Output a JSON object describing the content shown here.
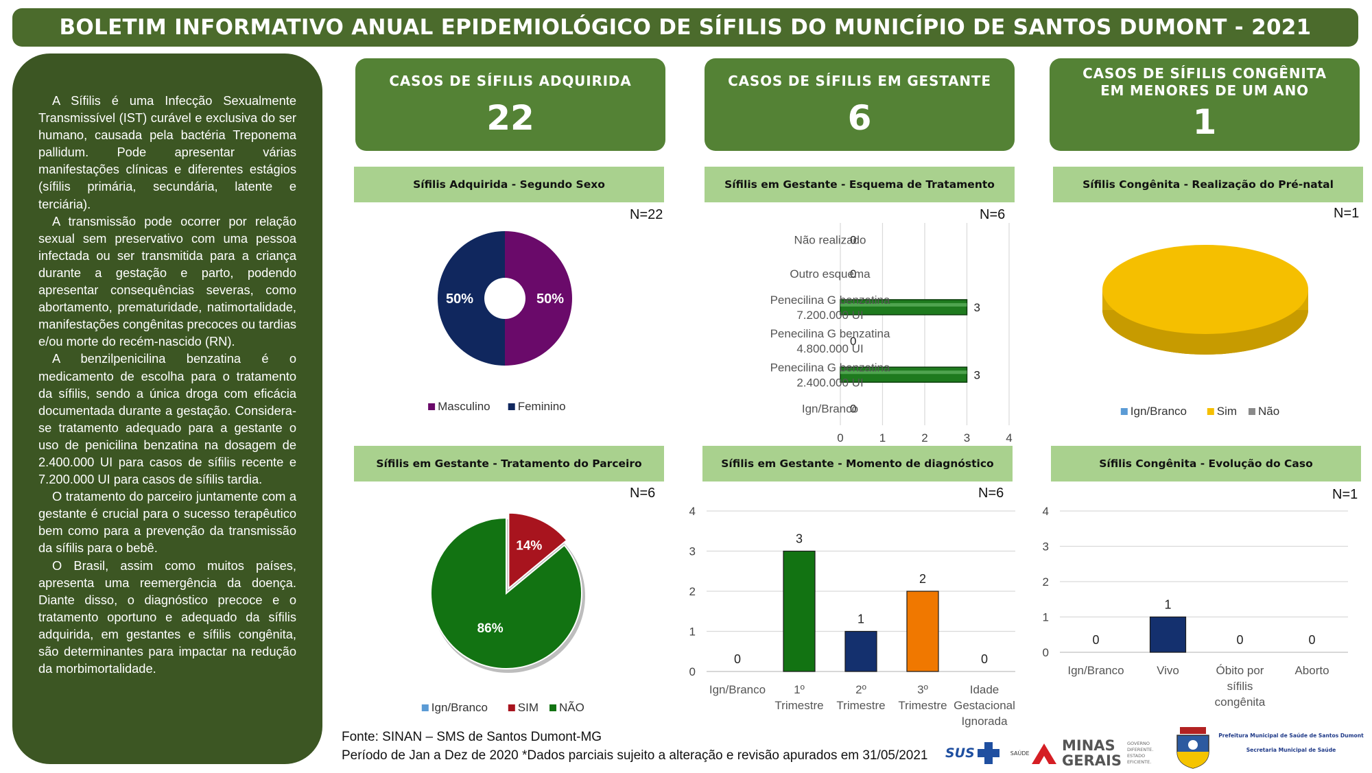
{
  "title": "BOLETIM INFORMATIVO ANUAL EPIDEMIOLÓGICO DE SÍFILIS DO MUNICÍPIO DE SANTOS DUMONT - 2021",
  "sidebar": {
    "paragraphs": [
      "A Sífilis é uma Infecção Sexualmente Transmissível (IST) curável e exclusiva do ser humano, causada pela bactéria Treponema pallidum. Pode apresentar várias manifestações clínicas e diferentes estágios (sífilis primária, secundária, latente e terciária).",
      "A transmissão pode ocorrer por relação sexual sem preservativo com uma pessoa infectada ou ser transmitida para a criança durante a gestação e parto, podendo apresentar consequências severas, como abortamento, prematuridade, natimortalidade, manifestações congênitas precoces ou tardias e/ou morte do recém-nascido (RN).",
      "A benzilpenicilina benzatina é o medicamento de escolha para o tratamento da sífilis, sendo a única droga com eficácia documentada durante a gestação. Considera-se tratamento adequado para a gestante o uso de penicilina benzatina na dosagem de 2.400.000 UI para casos de sífilis recente e 7.200.000 UI para casos de sífilis tardia.",
      "O tratamento do parceiro juntamente com a gestante é crucial para o sucesso terapêutico bem como para a prevenção da transmissão da sífilis para o bebê.",
      "O Brasil, assim como muitos países, apresenta uma reemergência da doença. Diante disso, o diagnóstico precoce e o tratamento oportuno e adequado da sífilis adquirida, em gestantes e sífilis congênita, são determinantes para impactar na redução da morbimortalidade."
    ]
  },
  "kpis": [
    {
      "label": "CASOS DE SÍFILIS ADQUIRIDA",
      "value": "22"
    },
    {
      "label": "CASOS DE SÍFILIS EM GESTANTE",
      "value": "6"
    },
    {
      "label_line1": "CASOS DE SÍFILIS CONGÊNITA",
      "label_line2": "EM MENORES DE UM ANO",
      "value": "1"
    }
  ],
  "colors": {
    "masculino": "#6a0a6a",
    "feminino": "#10275e",
    "green_bar": "#1e7a1e",
    "sim": "#a8141e",
    "nao": "#127312",
    "ign": "#5b9bd5",
    "yellow": "#f5bf00",
    "orange": "#f07800",
    "navy": "#14306e"
  },
  "chart_data": [
    {
      "type": "pie",
      "title": "Sífilis Adquirida - Segundo Sexo",
      "n_label": "N=22",
      "labels": [
        "Masculino",
        "Feminino"
      ],
      "values": [
        50,
        50
      ],
      "value_labels": [
        "50%",
        "50%"
      ],
      "legend": "bottom",
      "donut": true
    },
    {
      "type": "bar",
      "orientation": "horizontal",
      "title": "Sífilis em Gestante - Esquema de Tratamento",
      "n_label": "N=6",
      "categories": [
        [
          "Não realizado"
        ],
        [
          "Outro esquema"
        ],
        [
          "Penecilina G benzatina",
          "7.200.000 UI"
        ],
        [
          "Penecilina G benzatina",
          "4.800.000 UI"
        ],
        [
          "Penecilina G benzatina",
          "2.400.000 UI"
        ],
        [
          "Ign/Branco"
        ]
      ],
      "values": [
        0,
        0,
        3,
        0,
        3,
        0
      ],
      "xlim": [
        0,
        4
      ],
      "xticks": [
        "0",
        "1",
        "2",
        "3",
        "4"
      ],
      "grid": true
    },
    {
      "type": "pie",
      "title": "Sífilis Congênita - Realização do Pré-natal",
      "n_label": "N=1",
      "labels": [
        "Ign/Branco",
        "Sim",
        "Não"
      ],
      "values": [
        0,
        1,
        0
      ],
      "legend": "bottom"
    },
    {
      "type": "pie",
      "title": "Sífilis em Gestante - Tratamento do Parceiro",
      "n_label": "N=6",
      "labels": [
        "Ign/Branco",
        "SIM",
        "NÃO"
      ],
      "values": [
        0,
        14,
        86
      ],
      "value_labels": [
        "",
        "14%",
        "86%"
      ],
      "legend": "bottom"
    },
    {
      "type": "bar",
      "title": "Sífilis em Gestante - Momento de diagnóstico",
      "n_label": "N=6",
      "categories": [
        [
          "Ign/Branco"
        ],
        [
          "1º",
          "Trimestre"
        ],
        [
          "2º",
          "Trimestre"
        ],
        [
          "3º",
          "Trimestre"
        ],
        [
          "Idade",
          "Gestacional",
          "Ignorada"
        ]
      ],
      "values": [
        0,
        3,
        1,
        2,
        0
      ],
      "ylim": [
        0,
        4
      ],
      "yticks": [
        "0",
        "1",
        "2",
        "3",
        "4"
      ],
      "grid": true
    },
    {
      "type": "bar",
      "title": "Sífilis Congênita - Evolução do Caso",
      "n_label": "N=1",
      "categories": [
        [
          "Ign/Branco"
        ],
        [
          "Vivo"
        ],
        [
          "Óbito por",
          "sífilis",
          "congênita"
        ],
        [
          "Aborto"
        ]
      ],
      "values": [
        0,
        1,
        0,
        0
      ],
      "ylim": [
        0,
        4
      ],
      "yticks": [
        "0",
        "1",
        "2",
        "3",
        "4"
      ],
      "grid": true
    }
  ],
  "footer": {
    "source": "Fonte: SINAN – SMS de Santos Dumont-MG",
    "period": "Período de Jan a Dez de 2020 *Dados parciais sujeito a alteração e revisão apurados em 31/05/2021"
  },
  "logos": {
    "sus": "SUS",
    "saude": "SAÚDE",
    "minas_line1": "MINAS",
    "minas_line2": "GERAIS",
    "governo": "GOVERNO DIFERENTE. ESTADO EFICIENTE.",
    "prefeitura": "Prefeitura Municipal de Saúde de Santos Dumont",
    "secretaria": "Secretaria Municipal de Saúde"
  }
}
